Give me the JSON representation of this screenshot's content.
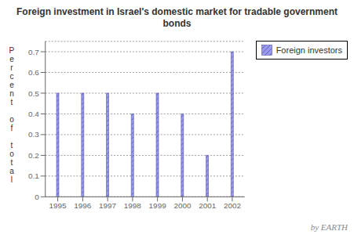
{
  "chart_data": {
    "type": "bar",
    "title": "Foreign investment in Israel's domestic market for tradable government bonds",
    "ylabel": "Percent of total",
    "categories": [
      "1995",
      "1996",
      "1997",
      "1998",
      "1999",
      "2000",
      "2001",
      "2002"
    ],
    "series": [
      {
        "name": "Foreign investors",
        "color": "#9999ee",
        "values": [
          0.5,
          0.5,
          0.5,
          0.4,
          0.5,
          0.4,
          0.2,
          0.7
        ]
      }
    ],
    "ylim": [
      0,
      0.75
    ],
    "yticks": [
      0,
      0.1,
      0.2,
      0.3,
      0.4,
      0.5,
      0.6,
      0.7
    ],
    "grid": true,
    "legend": "upper right",
    "annotations": [
      "by EARTH"
    ]
  }
}
